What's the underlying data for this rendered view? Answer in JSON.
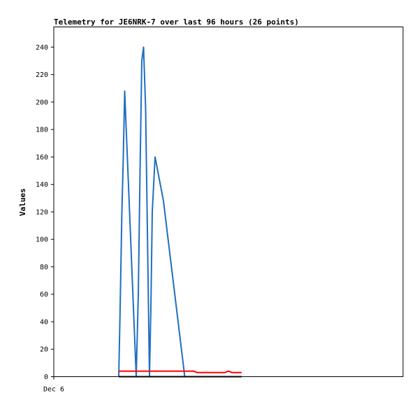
{
  "chart_data": {
    "type": "line",
    "title": "Telemetry for JE6NRK-7 over last 96 hours (26 points)",
    "xlabel": "",
    "ylabel": "Values",
    "x_tick_labels": [
      "Dec 6"
    ],
    "ylim": [
      0,
      255
    ],
    "y_ticks": [
      0,
      20,
      40,
      60,
      80,
      100,
      120,
      140,
      160,
      180,
      200,
      220,
      240
    ],
    "xlim": [
      0,
      100
    ],
    "grid": false,
    "legend": "none",
    "colors": {
      "series_a": "#1f6fc0",
      "series_b": "#ff0000",
      "series_c": "#000000"
    },
    "series": [
      {
        "x": [
          18.6,
          19.0,
          19.5,
          19.9,
          20.3,
          23.6,
          24.2,
          24.7,
          25.2,
          25.7,
          26.3,
          27.4,
          27.8,
          28.2,
          29.0,
          31.4,
          37.5
        ],
        "values": [
          0,
          50,
          120,
          160,
          208,
          0,
          60,
          150,
          230,
          240,
          195,
          0,
          50,
          120,
          160,
          128,
          0
        ],
        "color": "#1f6fc0"
      },
      {
        "x": [
          18.6,
          20.5,
          25.0,
          30.0,
          35.0,
          40.0,
          41.0,
          44.0,
          47.0,
          49.0,
          50.0,
          51.0,
          53.8
        ],
        "values": [
          4,
          4,
          4,
          4,
          4,
          4,
          3,
          3,
          3,
          3,
          4,
          3,
          3
        ],
        "color": "#ff0000"
      },
      {
        "x": [
          18.6,
          53.8
        ],
        "values": [
          0,
          0
        ],
        "color": "#000000"
      }
    ]
  }
}
